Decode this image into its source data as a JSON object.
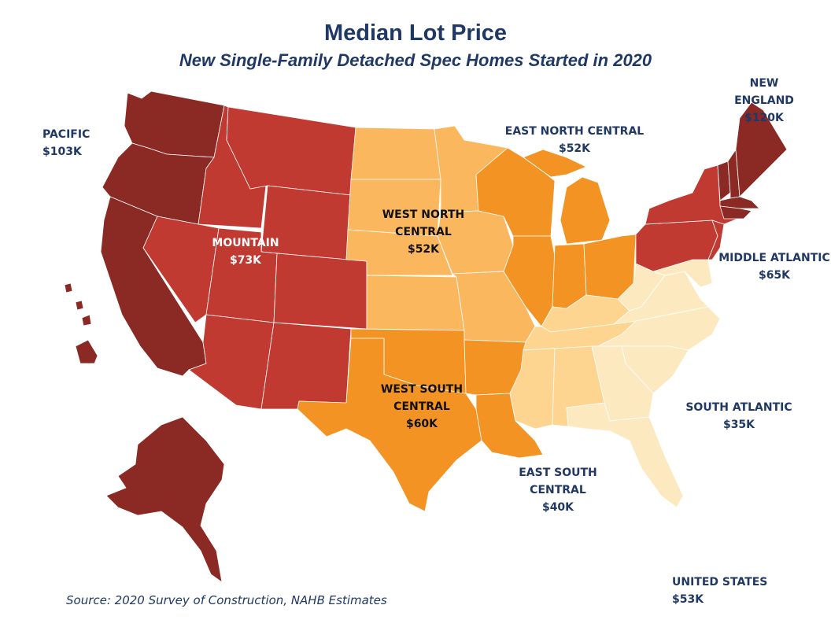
{
  "title": "Median Lot Price",
  "subtitle": "New Single-Family Detached Spec Homes Started in 2020",
  "source": "Source: 2020 Survey of Construction, NAHB Estimates",
  "colors": {
    "pacific": "#8b2a24",
    "new_england": "#8b2a24",
    "mountain": "#c13a32",
    "middle_atlantic": "#c13a32",
    "west_south_central": "#f39323",
    "east_north_central": "#f39323",
    "west_north_central": "#fbb75d",
    "east_south_central": "#fdd591",
    "south_atlantic": "#fde9c0",
    "text": "#1f3864"
  },
  "regions": {
    "pacific": {
      "name": "PACIFIC",
      "value": "$103K"
    },
    "mountain": {
      "name": "MOUNTAIN",
      "value": "$73K"
    },
    "west_north_central": {
      "name_line1": "WEST NORTH",
      "name_line2": "CENTRAL",
      "value": "$52K"
    },
    "east_north_central": {
      "name": "EAST NORTH CENTRAL",
      "value": "$52K"
    },
    "new_england": {
      "name": "NEW ENGLAND",
      "value": "$120K"
    },
    "middle_atlantic": {
      "name": "MIDDLE ATLANTIC",
      "value": "$65K"
    },
    "south_atlantic": {
      "name": "SOUTH ATLANTIC",
      "value": "$35K"
    },
    "east_south_central": {
      "name_line1": "EAST SOUTH",
      "name_line2": "CENTRAL",
      "value": "$40K"
    },
    "west_south_central": {
      "name_line1": "WEST SOUTH",
      "name_line2": "CENTRAL",
      "value": "$60K"
    },
    "united_states": {
      "name": "UNITED STATES",
      "value": "$53K"
    }
  }
}
